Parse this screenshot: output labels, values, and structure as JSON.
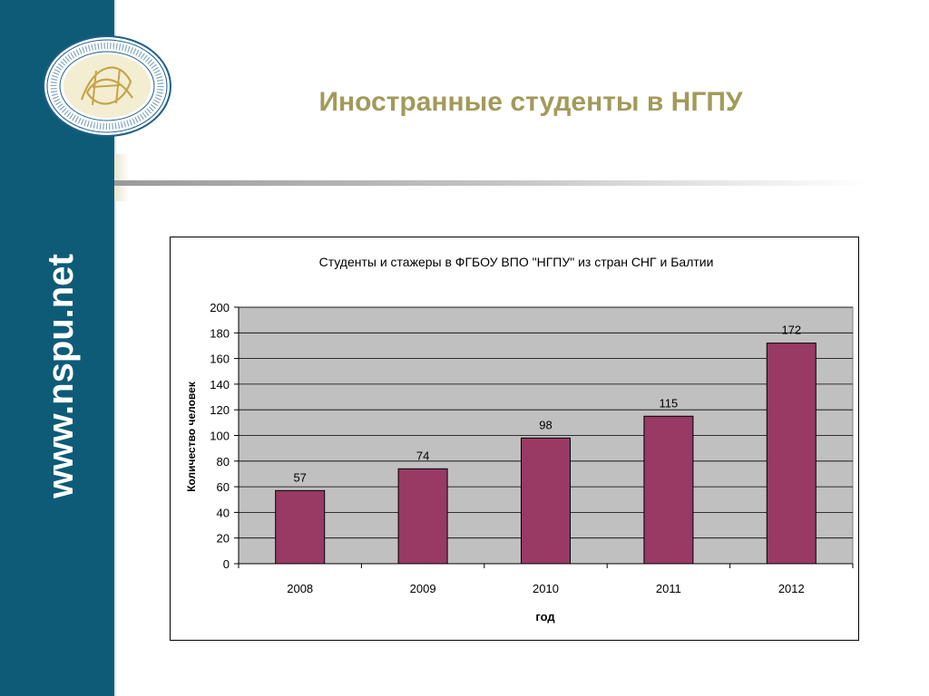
{
  "sidebar": {
    "site_url": "www.nspu.net",
    "logo_icon": "university-seal-icon"
  },
  "slide": {
    "title": "Иностранные студенты в НГПУ"
  },
  "colors": {
    "sidebar": "#0e5b78",
    "title": "#a39a5a",
    "bar": "#983a64",
    "plot_bg": "#c0c0c0"
  },
  "chart_data": {
    "type": "bar",
    "title": "Студенты и стажеры в ФГБОУ ВПО \"НГПУ\" из стран СНГ и Балтии",
    "xlabel": "год",
    "ylabel": "Количество человек",
    "categories": [
      "2008",
      "2009",
      "2010",
      "2011",
      "2012"
    ],
    "values": [
      57,
      74,
      98,
      115,
      172
    ],
    "data_labels": [
      "57",
      "74",
      "98",
      "115",
      "172"
    ],
    "ylim": [
      0,
      200
    ],
    "yticks": [
      0,
      20,
      40,
      60,
      80,
      100,
      120,
      140,
      160,
      180,
      200
    ],
    "grid": true,
    "legend": "none"
  }
}
